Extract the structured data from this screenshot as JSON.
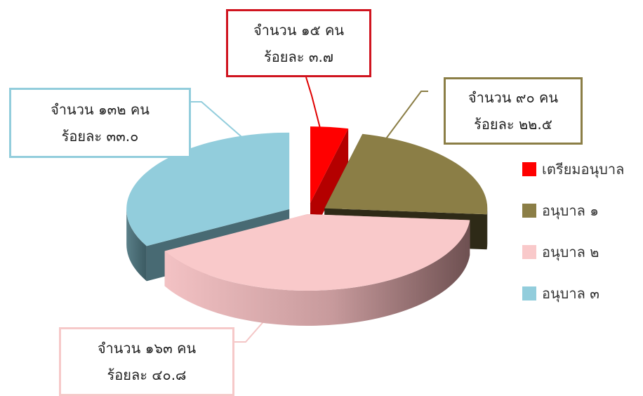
{
  "chart_data": {
    "type": "pie",
    "title": "",
    "categories": [
      "เตรียมอนุบาล",
      "อนุบาล ๑",
      "อนุบาล ๒",
      "อนุบาล ๓"
    ],
    "values": [
      15,
      90,
      163,
      132
    ],
    "percentages": [
      3.7,
      22.5,
      40.8,
      33.0
    ],
    "colors": [
      "#ff0000",
      "#8b7e46",
      "#f9c9ca",
      "#92cddc"
    ],
    "legend_position": "right",
    "callouts": [
      {
        "line1": "จำนวน ๑๕ คน",
        "line2": "ร้อยละ ๓.๗",
        "border_color": "#d0141f"
      },
      {
        "line1": "จำนวน ๙๐ คน",
        "line2": "ร้อยละ ๒๒.๕",
        "border_color": "#8b7e46"
      },
      {
        "line1": "จำนวน ๑๖๓ คน",
        "line2": "ร้อยละ ๔๐.๘",
        "border_color": "#f6c9c9"
      },
      {
        "line1": "จำนวน ๑๓๒ คน",
        "line2": "ร้อยละ ๓๓.๐",
        "border_color": "#92cddc"
      }
    ]
  }
}
